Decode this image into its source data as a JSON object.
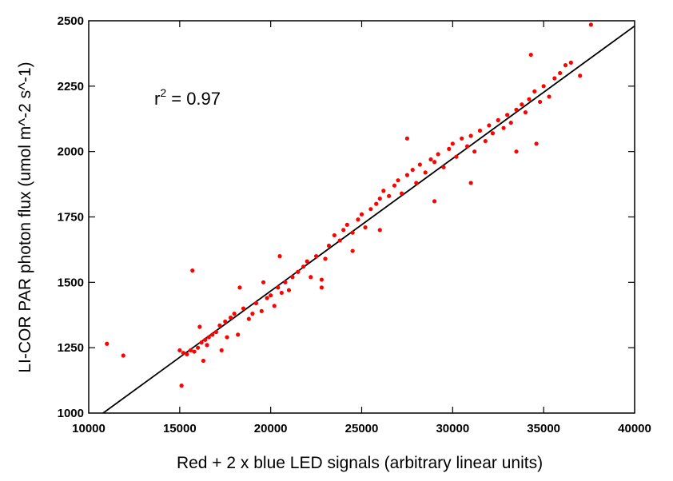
{
  "chart_data": {
    "type": "scatter",
    "title": "",
    "xlabel": "Red + 2 x blue LED signals (arbitrary linear units)",
    "ylabel": "LI-COR PAR photon flux (umol m^-2 s^-1)",
    "xlim": [
      10000,
      40000
    ],
    "ylim": [
      1000,
      2500
    ],
    "x_ticks": [
      "10000",
      "15000",
      "20000",
      "25000",
      "30000",
      "35000",
      "40000"
    ],
    "y_ticks": [
      "1000",
      "1250",
      "1500",
      "1750",
      "2000",
      "2250",
      "2500"
    ],
    "grid": false,
    "annotation": {
      "r": "r",
      "sup": "2",
      "rest": " = 0.97"
    },
    "fit_line": {
      "x": [
        10000,
        40000
      ],
      "y": [
        960,
        2480
      ]
    },
    "series": [
      {
        "color": "#ff0000",
        "points": [
          [
            11000,
            1265
          ],
          [
            11900,
            1220
          ],
          [
            15100,
            1105
          ],
          [
            15700,
            1545
          ],
          [
            15000,
            1240
          ],
          [
            15200,
            1230
          ],
          [
            15400,
            1225
          ],
          [
            15600,
            1240
          ],
          [
            15800,
            1235
          ],
          [
            16000,
            1250
          ],
          [
            16200,
            1270
          ],
          [
            16400,
            1280
          ],
          [
            16600,
            1290
          ],
          [
            16800,
            1300
          ],
          [
            16100,
            1330
          ],
          [
            16500,
            1260
          ],
          [
            16300,
            1200
          ],
          [
            17000,
            1310
          ],
          [
            17200,
            1335
          ],
          [
            17500,
            1350
          ],
          [
            17800,
            1365
          ],
          [
            17300,
            1240
          ],
          [
            17600,
            1290
          ],
          [
            18000,
            1380
          ],
          [
            18200,
            1300
          ],
          [
            18500,
            1400
          ],
          [
            18800,
            1360
          ],
          [
            19000,
            1380
          ],
          [
            19200,
            1420
          ],
          [
            19500,
            1390
          ],
          [
            19800,
            1440
          ],
          [
            20000,
            1450
          ],
          [
            20200,
            1410
          ],
          [
            20400,
            1480
          ],
          [
            20600,
            1460
          ],
          [
            20800,
            1500
          ],
          [
            21000,
            1470
          ],
          [
            21200,
            1520
          ],
          [
            21500,
            1540
          ],
          [
            21800,
            1560
          ],
          [
            22000,
            1580
          ],
          [
            22200,
            1520
          ],
          [
            22500,
            1600
          ],
          [
            22800,
            1480
          ],
          [
            23000,
            1590
          ],
          [
            23200,
            1640
          ],
          [
            23500,
            1680
          ],
          [
            23800,
            1660
          ],
          [
            24000,
            1700
          ],
          [
            24200,
            1720
          ],
          [
            24500,
            1690
          ],
          [
            24800,
            1740
          ],
          [
            25000,
            1760
          ],
          [
            25200,
            1710
          ],
          [
            25500,
            1780
          ],
          [
            25800,
            1800
          ],
          [
            26000,
            1820
          ],
          [
            26200,
            1850
          ],
          [
            26500,
            1830
          ],
          [
            26800,
            1870
          ],
          [
            27000,
            1890
          ],
          [
            27200,
            1840
          ],
          [
            27500,
            1910
          ],
          [
            27800,
            1930
          ],
          [
            28000,
            1880
          ],
          [
            28200,
            1950
          ],
          [
            28500,
            1920
          ],
          [
            28800,
            1970
          ],
          [
            29000,
            1960
          ],
          [
            29200,
            1990
          ],
          [
            29500,
            1940
          ],
          [
            29800,
            2010
          ],
          [
            30000,
            2030
          ],
          [
            30200,
            1980
          ],
          [
            30500,
            2050
          ],
          [
            30800,
            2020
          ],
          [
            31000,
            2060
          ],
          [
            31200,
            2000
          ],
          [
            31500,
            2080
          ],
          [
            31800,
            2040
          ],
          [
            32000,
            2100
          ],
          [
            32200,
            2070
          ],
          [
            32500,
            2120
          ],
          [
            32800,
            2090
          ],
          [
            33000,
            2140
          ],
          [
            33200,
            2110
          ],
          [
            33500,
            2160
          ],
          [
            33800,
            2180
          ],
          [
            34000,
            2150
          ],
          [
            34200,
            2200
          ],
          [
            34500,
            2230
          ],
          [
            34800,
            2190
          ],
          [
            35000,
            2250
          ],
          [
            35300,
            2210
          ],
          [
            35600,
            2280
          ],
          [
            35900,
            2300
          ],
          [
            36200,
            2330
          ],
          [
            36500,
            2340
          ],
          [
            34300,
            2370
          ],
          [
            34600,
            2030
          ],
          [
            37000,
            2290
          ],
          [
            37600,
            2485
          ],
          [
            29000,
            1810
          ],
          [
            31000,
            1880
          ],
          [
            33500,
            2000
          ],
          [
            27500,
            2050
          ],
          [
            26000,
            1700
          ],
          [
            22800,
            1510
          ],
          [
            20500,
            1600
          ],
          [
            19600,
            1500
          ],
          [
            18300,
            1480
          ],
          [
            24500,
            1620
          ]
        ]
      }
    ]
  }
}
